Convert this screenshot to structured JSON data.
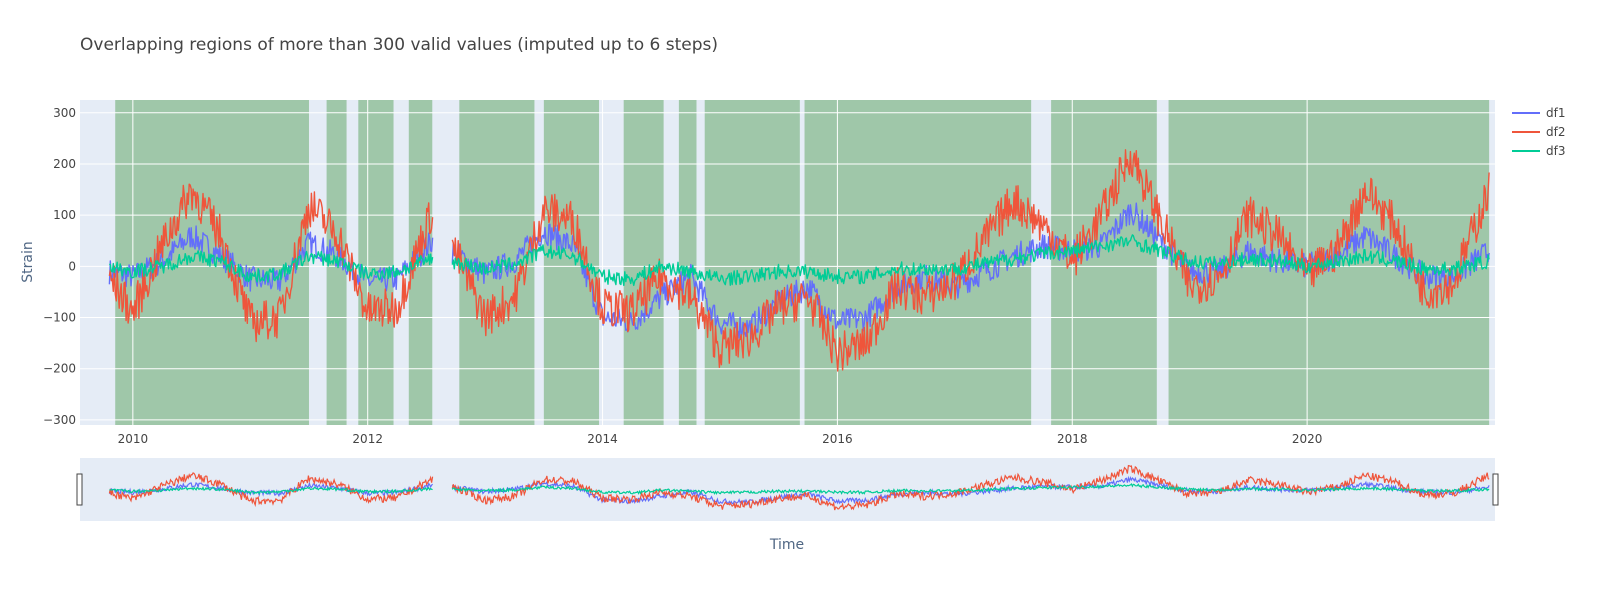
{
  "chart_data": {
    "type": "line",
    "title": "Overlapping regions of more than 300 valid values (imputed up to 6 steps)",
    "xlabel": "Time",
    "ylabel": "Strain",
    "x_range": [
      2009.55,
      2021.6
    ],
    "ylim": [
      -310,
      325
    ],
    "x_ticks": [
      2010,
      2012,
      2014,
      2016,
      2018,
      2020
    ],
    "y_ticks": [
      -300,
      -200,
      -100,
      0,
      100,
      200,
      300
    ],
    "grid": true,
    "legend_position": "top-right",
    "range_slider": true,
    "colors": {
      "plot_bg": "#E5ECF6",
      "grid": "#FFFFFF",
      "highlight": "#2E8B2E",
      "df1": "#636EFA",
      "df2": "#EF553B",
      "df3": "#00CC96"
    },
    "highlight_regions": [
      [
        2009.85,
        2011.5
      ],
      [
        2011.65,
        2011.82
      ],
      [
        2011.92,
        2012.22
      ],
      [
        2012.35,
        2012.55
      ],
      [
        2012.78,
        2013.42
      ],
      [
        2013.5,
        2013.97
      ],
      [
        2014.18,
        2014.52
      ],
      [
        2014.65,
        2014.8
      ],
      [
        2014.87,
        2015.68
      ],
      [
        2015.72,
        2017.65
      ],
      [
        2017.82,
        2018.72
      ],
      [
        2018.82,
        2021.55
      ]
    ],
    "gaps": [
      [
        2012.56,
        2012.72
      ]
    ],
    "series": [
      {
        "name": "df1",
        "x": [
          2009.8,
          2010.0,
          2010.25,
          2010.5,
          2010.75,
          2011.0,
          2011.25,
          2011.5,
          2011.75,
          2012.0,
          2012.25,
          2012.55,
          2012.72,
          2013.0,
          2013.25,
          2013.5,
          2013.75,
          2014.0,
          2014.25,
          2014.5,
          2014.75,
          2015.0,
          2015.25,
          2015.5,
          2015.75,
          2016.0,
          2016.25,
          2016.5,
          2016.75,
          2017.0,
          2017.25,
          2017.5,
          2017.75,
          2018.0,
          2018.25,
          2018.5,
          2018.75,
          2019.0,
          2019.25,
          2019.5,
          2019.75,
          2020.0,
          2020.25,
          2020.5,
          2020.75,
          2021.0,
          2021.25,
          2021.55
        ],
        "y": [
          -10,
          -20,
          10,
          60,
          20,
          -25,
          -30,
          45,
          20,
          -30,
          -25,
          50,
          30,
          -15,
          10,
          70,
          40,
          -100,
          -110,
          -60,
          -20,
          -110,
          -120,
          -70,
          -40,
          -110,
          -100,
          -40,
          -20,
          -40,
          -10,
          20,
          40,
          30,
          40,
          110,
          50,
          -10,
          -10,
          30,
          10,
          0,
          20,
          60,
          20,
          -20,
          -20,
          30
        ]
      },
      {
        "name": "df2",
        "x": [
          2009.8,
          2010.0,
          2010.25,
          2010.5,
          2010.75,
          2011.0,
          2011.25,
          2011.5,
          2011.75,
          2012.0,
          2012.25,
          2012.55,
          2012.72,
          2013.0,
          2013.25,
          2013.5,
          2013.75,
          2014.0,
          2014.25,
          2014.5,
          2014.75,
          2015.0,
          2015.25,
          2015.5,
          2015.75,
          2016.0,
          2016.25,
          2016.5,
          2016.75,
          2017.0,
          2017.25,
          2017.5,
          2017.75,
          2018.0,
          2018.25,
          2018.5,
          2018.75,
          2019.0,
          2019.25,
          2019.5,
          2019.75,
          2020.0,
          2020.25,
          2020.5,
          2020.75,
          2021.0,
          2021.25,
          2021.55
        ],
        "y": [
          -20,
          -90,
          40,
          150,
          60,
          -110,
          -100,
          120,
          60,
          -90,
          -80,
          110,
          40,
          -100,
          -60,
          110,
          90,
          -80,
          -90,
          -20,
          -60,
          -160,
          -140,
          -80,
          -60,
          -170,
          -150,
          -40,
          -60,
          -30,
          50,
          130,
          80,
          10,
          100,
          220,
          90,
          -40,
          -20,
          100,
          60,
          -20,
          30,
          150,
          80,
          -50,
          -30,
          150
        ]
      },
      {
        "name": "df3",
        "x": [
          2009.8,
          2010.0,
          2010.25,
          2010.5,
          2010.75,
          2011.0,
          2011.25,
          2011.5,
          2011.75,
          2012.0,
          2012.25,
          2012.55,
          2012.72,
          2013.0,
          2013.25,
          2013.5,
          2013.75,
          2014.0,
          2014.25,
          2014.5,
          2014.75,
          2015.0,
          2015.25,
          2015.5,
          2015.75,
          2016.0,
          2016.25,
          2016.5,
          2016.75,
          2017.0,
          2017.25,
          2017.5,
          2017.75,
          2018.0,
          2018.25,
          2018.5,
          2018.75,
          2019.0,
          2019.25,
          2019.5,
          2019.75,
          2020.0,
          2020.25,
          2020.5,
          2020.75,
          2021.0,
          2021.25,
          2021.55
        ],
        "y": [
          0,
          -10,
          0,
          20,
          10,
          -20,
          -15,
          20,
          10,
          -15,
          -10,
          15,
          10,
          -5,
          5,
          30,
          20,
          -20,
          -25,
          0,
          -10,
          -25,
          -20,
          -10,
          -10,
          -20,
          -20,
          -5,
          -5,
          -5,
          5,
          15,
          25,
          30,
          40,
          50,
          30,
          10,
          5,
          15,
          10,
          0,
          10,
          20,
          10,
          -5,
          -5,
          10
        ]
      }
    ]
  }
}
